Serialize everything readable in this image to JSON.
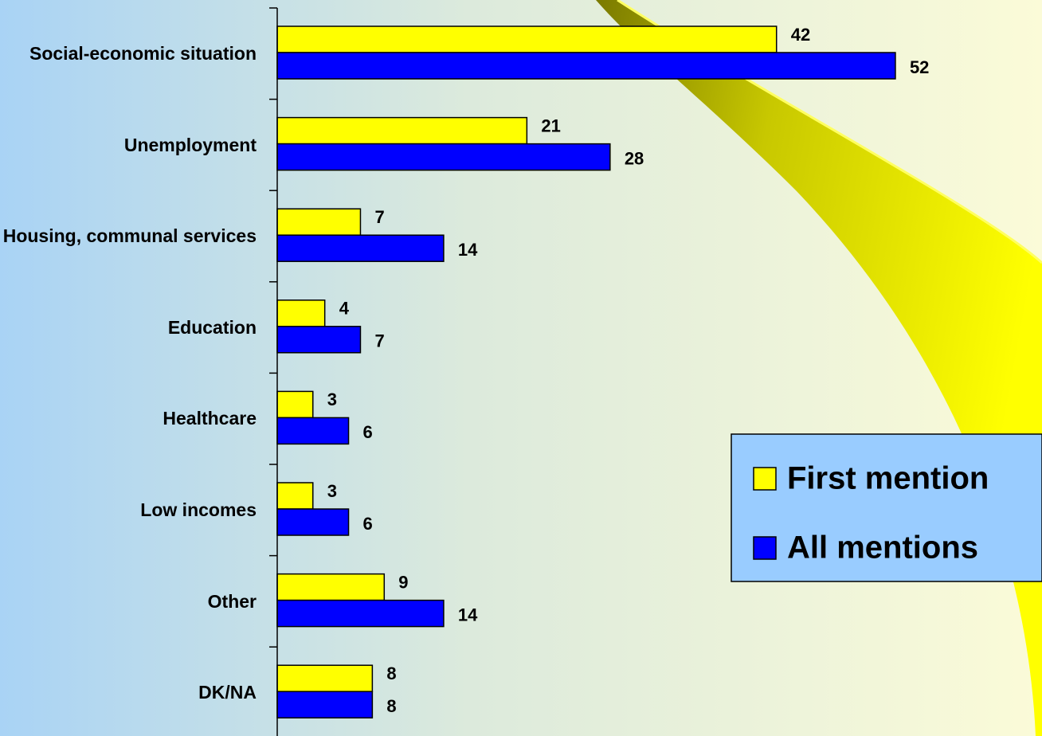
{
  "chart_data": {
    "type": "hbar",
    "categories": [
      "Social-economic situation",
      "Unemployment",
      "Housing, communal services",
      "Education",
      "Healthcare",
      "Low incomes",
      "Other",
      "DK/NA"
    ],
    "series": [
      {
        "name": "First mention",
        "color": "#ffff00",
        "values": [
          42,
          21,
          7,
          4,
          3,
          3,
          9,
          8
        ]
      },
      {
        "name": "All mentions",
        "color": "#0000ff",
        "values": [
          52,
          28,
          14,
          7,
          6,
          6,
          14,
          8
        ]
      }
    ],
    "xlim": [
      0,
      64
    ],
    "legend": "right"
  }
}
